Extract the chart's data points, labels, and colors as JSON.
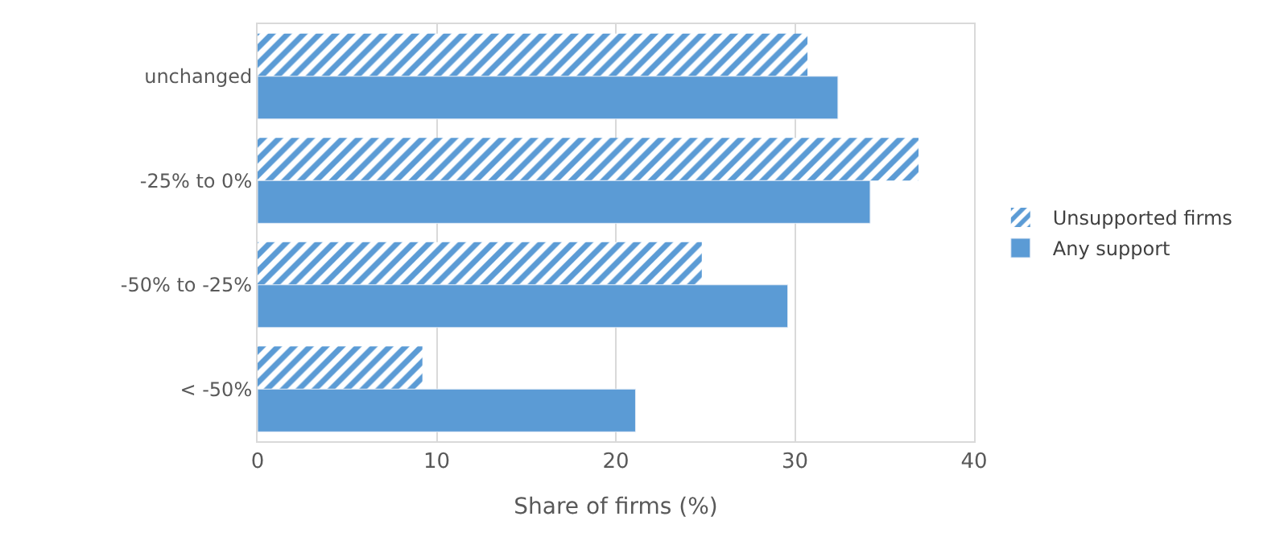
{
  "chart_data": {
    "type": "bar",
    "orientation": "horizontal",
    "xlabel": "Share of firms (%)",
    "categories": [
      "unchanged",
      "-25% to 0%",
      "-50% to -25%",
      "< -50%"
    ],
    "series": [
      {
        "name": "Unsupported firms",
        "color": "#5b9bd5",
        "values": [
          30.7,
          36.9,
          24.8,
          9.2
        ]
      },
      {
        "name": "Any support",
        "color": "#5b9bd5",
        "values": [
          32.4,
          34.2,
          29.6,
          21.1
        ]
      }
    ],
    "xlim": [
      0,
      40
    ],
    "xticks": [
      0,
      10,
      20,
      30,
      40
    ],
    "grid": "x",
    "legend": "right"
  }
}
